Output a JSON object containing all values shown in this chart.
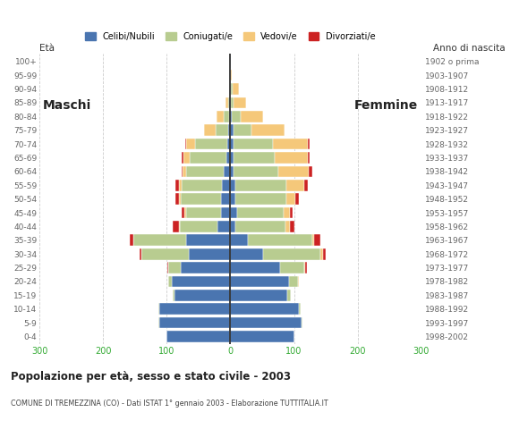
{
  "title": "Popolazione per età, sesso e stato civile - 2003",
  "subtitle": "COMUNE DI TREMEZZINA (CO) - Dati ISTAT 1° gennaio 2003 - Elaborazione TUTTITALIA.IT",
  "label_maschi": "Maschi",
  "label_femmine": "Femmine",
  "label_eta": "Età",
  "label_anno": "Anno di nascita",
  "age_groups_bottom_to_top": [
    "0-4",
    "5-9",
    "10-14",
    "15-19",
    "20-24",
    "25-29",
    "30-34",
    "35-39",
    "40-44",
    "45-49",
    "50-54",
    "55-59",
    "60-64",
    "65-69",
    "70-74",
    "75-79",
    "80-84",
    "85-89",
    "90-94",
    "95-99",
    "100+"
  ],
  "birth_years_bottom_to_top": [
    "1998-2002",
    "1993-1997",
    "1988-1992",
    "1983-1987",
    "1978-1982",
    "1973-1977",
    "1968-1972",
    "1963-1967",
    "1958-1962",
    "1953-1957",
    "1948-1952",
    "1943-1947",
    "1938-1942",
    "1933-1937",
    "1928-1932",
    "1923-1927",
    "1918-1922",
    "1913-1917",
    "1908-1912",
    "1903-1907",
    "1902 o prima"
  ],
  "colors": {
    "celibe": "#4a75b0",
    "coniugato": "#b8cc90",
    "vedovo": "#f5c87a",
    "divorziato": "#cc2222"
  },
  "legend_labels": [
    "Celibi/Nubili",
    "Coniugati/e",
    "Vedovi/e",
    "Divorziati/e"
  ],
  "males_bottom_to_top": {
    "celibe": [
      100,
      112,
      112,
      88,
      92,
      78,
      65,
      70,
      20,
      15,
      14,
      13,
      10,
      6,
      5,
      3,
      2,
      1,
      0,
      0,
      1
    ],
    "coniugato": [
      1,
      1,
      1,
      2,
      5,
      20,
      75,
      82,
      60,
      55,
      64,
      64,
      60,
      58,
      50,
      20,
      8,
      2,
      0,
      0,
      0
    ],
    "vedovo": [
      0,
      0,
      0,
      0,
      0,
      0,
      0,
      1,
      1,
      2,
      3,
      4,
      5,
      10,
      14,
      18,
      12,
      4,
      1,
      0,
      0
    ],
    "divorziato": [
      0,
      0,
      0,
      0,
      0,
      1,
      2,
      5,
      10,
      5,
      5,
      5,
      2,
      2,
      2,
      0,
      0,
      0,
      0,
      0,
      0
    ]
  },
  "females_bottom_to_top": {
    "nubile": [
      100,
      112,
      108,
      90,
      92,
      78,
      52,
      28,
      8,
      10,
      8,
      8,
      5,
      5,
      5,
      5,
      2,
      1,
      1,
      0,
      1
    ],
    "coniugata": [
      1,
      1,
      2,
      5,
      14,
      38,
      90,
      100,
      78,
      74,
      80,
      80,
      70,
      64,
      62,
      28,
      14,
      4,
      2,
      0,
      0
    ],
    "vedova": [
      0,
      0,
      0,
      0,
      1,
      2,
      3,
      4,
      7,
      9,
      14,
      28,
      48,
      52,
      55,
      52,
      35,
      20,
      10,
      2,
      0
    ],
    "divorziata": [
      0,
      0,
      0,
      0,
      1,
      2,
      5,
      10,
      8,
      5,
      5,
      5,
      5,
      3,
      3,
      0,
      0,
      0,
      1,
      0,
      0
    ]
  },
  "xlim": 300,
  "figsize": [
    5.8,
    4.8
  ],
  "dpi": 100
}
